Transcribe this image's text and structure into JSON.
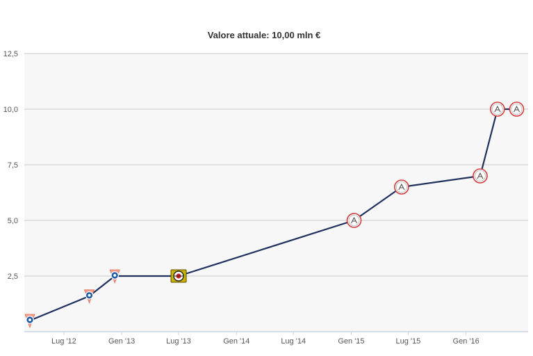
{
  "colors": {
    "line": "#1f2f5e",
    "plot_background": "#f7f7f7",
    "grid": "#c8c8c8",
    "axis": "#c9d4e6",
    "text": "#333333"
  },
  "chart_data": {
    "type": "line",
    "title": "Valore attuale: 10,00 mln €",
    "xlabel": "",
    "ylabel": "",
    "ylim": [
      0,
      12.5
    ],
    "y_ticks": [
      "2,5",
      "5,0",
      "7,5",
      "10,0",
      "12,5"
    ],
    "y_tick_values": [
      2.5,
      5.0,
      7.5,
      10.0,
      12.5
    ],
    "x_ticks": [
      "Lug '12",
      "Gen '13",
      "Lug '13",
      "Gen '14",
      "Lug '14",
      "Gen '15",
      "Lug '15",
      "Gen '16"
    ],
    "x_tick_dates": [
      "2012-07-01",
      "2013-01-01",
      "2013-07-01",
      "2014-01-01",
      "2014-07-01",
      "2015-01-01",
      "2015-07-01",
      "2016-01-01"
    ],
    "x_range": [
      "2012-03-15",
      "2016-06-20"
    ],
    "grid": true,
    "series": [
      {
        "values_unit": "mln €",
        "points": [
          {
            "date": "2012-03-15",
            "value": 0.5,
            "club_icon": "club-crest-schalke-icon"
          },
          {
            "date": "2012-09-20",
            "value": 1.6,
            "club_icon": "club-crest-schalke-icon"
          },
          {
            "date": "2012-12-10",
            "value": 2.5,
            "club_icon": "club-crest-schalke-icon"
          },
          {
            "date": "2013-07-01",
            "value": 2.5,
            "club_icon": "club-crest-leverkusen-icon"
          },
          {
            "date": "2015-01-10",
            "value": 5.0,
            "club_icon": "club-crest-ajax-icon"
          },
          {
            "date": "2015-06-10",
            "value": 6.5,
            "club_icon": "club-crest-ajax-icon"
          },
          {
            "date": "2016-02-15",
            "value": 7.0,
            "club_icon": "club-crest-ajax-icon"
          },
          {
            "date": "2016-04-10",
            "value": 10.0,
            "club_icon": "club-crest-ajax-icon"
          },
          {
            "date": "2016-06-10",
            "value": 10.0,
            "club_icon": "club-crest-ajax-icon"
          }
        ]
      }
    ]
  }
}
